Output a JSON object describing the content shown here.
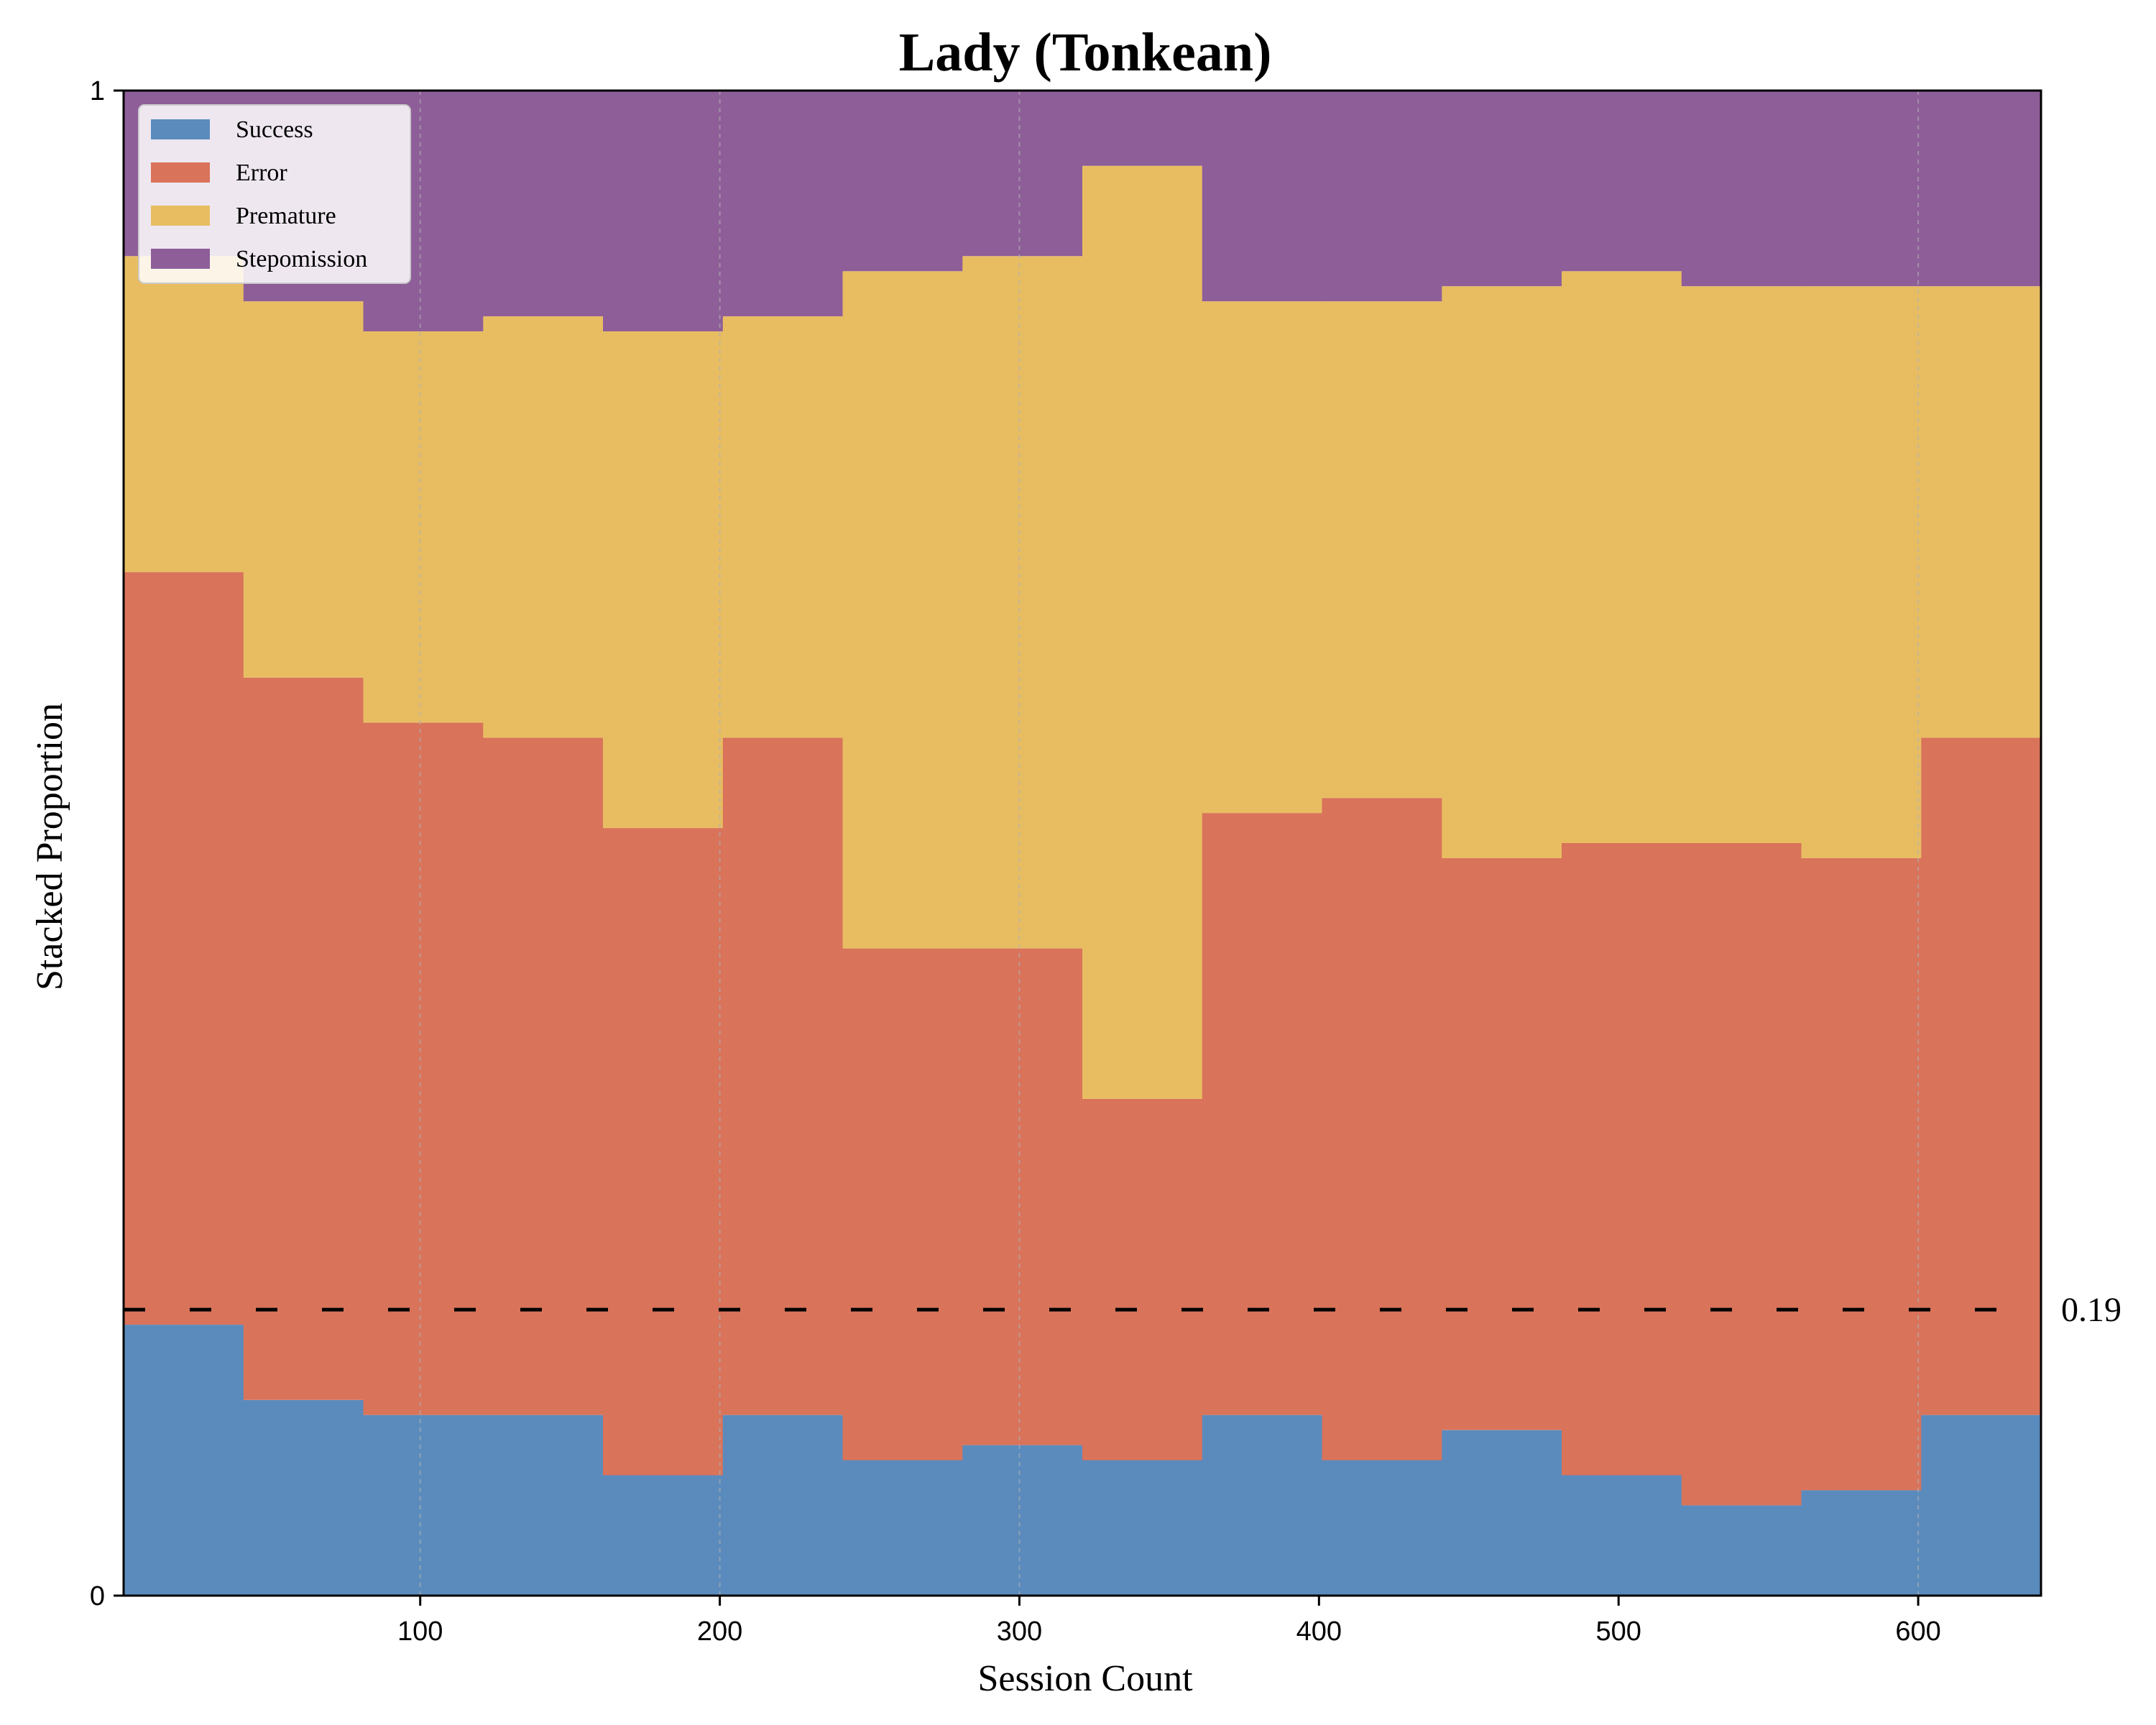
{
  "chart_data": {
    "type": "area",
    "stacked": true,
    "normalized": true,
    "title": "Lady (Tonkean)",
    "xlabel": "Session Count",
    "ylabel": "Stacked Proportion",
    "xlim": [
      1,
      641
    ],
    "ylim": [
      0,
      1
    ],
    "x_ticks": [
      100,
      200,
      300,
      400,
      500,
      600
    ],
    "x_tick_labels": [
      "100",
      "200",
      "300",
      "400",
      "500",
      "600"
    ],
    "y_ticks": [
      0,
      1
    ],
    "y_tick_labels": [
      "0",
      "1"
    ],
    "legend_position": "top-left",
    "grid": false,
    "reference_line": {
      "y": 0.19,
      "label": "0.19",
      "style": "dashed",
      "color": "#000000"
    },
    "vertical_markers": [
      100,
      200,
      300,
      600
    ],
    "series": [
      {
        "name": "Success",
        "color": "#5b8bbd"
      },
      {
        "name": "Error",
        "color": "#d9735a"
      },
      {
        "name": "Premature",
        "color": "#e8bd62"
      },
      {
        "name": "Stepomission",
        "color": "#8e5e99"
      }
    ],
    "segments": [
      {
        "x_start": 1,
        "x_end": 41,
        "success": 0.18,
        "error": 0.5,
        "premature": 0.21,
        "stepomission": 0.11
      },
      {
        "x_start": 41,
        "x_end": 81,
        "success": 0.13,
        "error": 0.48,
        "premature": 0.25,
        "stepomission": 0.14
      },
      {
        "x_start": 81,
        "x_end": 121,
        "success": 0.12,
        "error": 0.46,
        "premature": 0.26,
        "stepomission": 0.16
      },
      {
        "x_start": 121,
        "x_end": 161,
        "success": 0.12,
        "error": 0.45,
        "premature": 0.28,
        "stepomission": 0.15
      },
      {
        "x_start": 161,
        "x_end": 201,
        "success": 0.08,
        "error": 0.43,
        "premature": 0.33,
        "stepomission": 0.16
      },
      {
        "x_start": 201,
        "x_end": 241,
        "success": 0.12,
        "error": 0.45,
        "premature": 0.28,
        "stepomission": 0.15
      },
      {
        "x_start": 241,
        "x_end": 281,
        "success": 0.09,
        "error": 0.34,
        "premature": 0.45,
        "stepomission": 0.12
      },
      {
        "x_start": 281,
        "x_end": 321,
        "success": 0.1,
        "error": 0.33,
        "premature": 0.46,
        "stepomission": 0.11
      },
      {
        "x_start": 321,
        "x_end": 361,
        "success": 0.09,
        "error": 0.24,
        "premature": 0.62,
        "stepomission": 0.05
      },
      {
        "x_start": 361,
        "x_end": 401,
        "success": 0.12,
        "error": 0.4,
        "premature": 0.34,
        "stepomission": 0.14
      },
      {
        "x_start": 401,
        "x_end": 441,
        "success": 0.09,
        "error": 0.44,
        "premature": 0.33,
        "stepomission": 0.14
      },
      {
        "x_start": 441,
        "x_end": 481,
        "success": 0.11,
        "error": 0.38,
        "premature": 0.38,
        "stepomission": 0.13
      },
      {
        "x_start": 481,
        "x_end": 521,
        "success": 0.08,
        "error": 0.42,
        "premature": 0.38,
        "stepomission": 0.12
      },
      {
        "x_start": 521,
        "x_end": 561,
        "success": 0.06,
        "error": 0.44,
        "premature": 0.37,
        "stepomission": 0.13
      },
      {
        "x_start": 561,
        "x_end": 601,
        "success": 0.07,
        "error": 0.42,
        "premature": 0.38,
        "stepomission": 0.13
      },
      {
        "x_start": 601,
        "x_end": 641,
        "success": 0.12,
        "error": 0.45,
        "premature": 0.3,
        "stepomission": 0.13
      }
    ]
  }
}
